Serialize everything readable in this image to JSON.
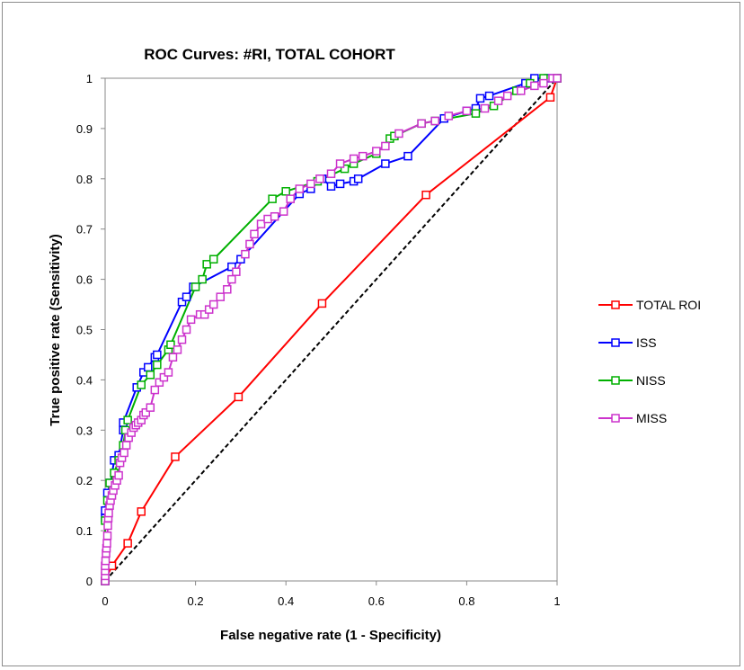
{
  "chart_data": {
    "type": "line",
    "title": "ROC Curves: #RI, TOTAL COHORT",
    "xlabel": "False negative rate (1 - Specificity)",
    "ylabel": "True positive rate (Sensitivity)",
    "xlim": [
      0,
      1
    ],
    "ylim": [
      0,
      1
    ],
    "x_ticks": [
      "0",
      "0.2",
      "0.4",
      "0.6",
      "0.8",
      "1"
    ],
    "y_ticks": [
      "0",
      "0.1",
      "0.2",
      "0.3",
      "0.4",
      "0.5",
      "0.6",
      "0.7",
      "0.8",
      "0.9",
      "1"
    ],
    "grid": false,
    "legend_position": "right",
    "reference_line": {
      "style": "dashed",
      "color": "#000000",
      "points": [
        [
          0,
          0
        ],
        [
          1,
          1
        ]
      ]
    },
    "series": [
      {
        "name": "TOTAL ROI",
        "color": "#ff0000",
        "marker": "square-open",
        "points": [
          [
            0,
            0
          ],
          [
            0.015,
            0.03
          ],
          [
            0.05,
            0.075
          ],
          [
            0.08,
            0.138
          ],
          [
            0.155,
            0.247
          ],
          [
            0.295,
            0.366
          ],
          [
            0.48,
            0.552
          ],
          [
            0.71,
            0.768
          ],
          [
            0.985,
            0.962
          ],
          [
            1.0,
            1.0
          ]
        ]
      },
      {
        "name": "ISS",
        "color": "#0000ff",
        "marker": "square-open",
        "points": [
          [
            0,
            0
          ],
          [
            0,
            0.125
          ],
          [
            0,
            0.14
          ],
          [
            0.005,
            0.175
          ],
          [
            0.012,
            0.195
          ],
          [
            0.02,
            0.24
          ],
          [
            0.03,
            0.25
          ],
          [
            0.04,
            0.3
          ],
          [
            0.04,
            0.315
          ],
          [
            0.07,
            0.385
          ],
          [
            0.085,
            0.415
          ],
          [
            0.095,
            0.425
          ],
          [
            0.11,
            0.445
          ],
          [
            0.115,
            0.45
          ],
          [
            0.17,
            0.555
          ],
          [
            0.18,
            0.565
          ],
          [
            0.195,
            0.585
          ],
          [
            0.28,
            0.625
          ],
          [
            0.3,
            0.64
          ],
          [
            0.43,
            0.77
          ],
          [
            0.455,
            0.78
          ],
          [
            0.48,
            0.8
          ],
          [
            0.5,
            0.785
          ],
          [
            0.52,
            0.79
          ],
          [
            0.55,
            0.795
          ],
          [
            0.56,
            0.8
          ],
          [
            0.62,
            0.83
          ],
          [
            0.67,
            0.845
          ],
          [
            0.75,
            0.92
          ],
          [
            0.8,
            0.935
          ],
          [
            0.82,
            0.94
          ],
          [
            0.83,
            0.96
          ],
          [
            0.85,
            0.965
          ],
          [
            0.93,
            0.99
          ],
          [
            0.95,
            1.0
          ],
          [
            0.98,
            1.0
          ],
          [
            1.0,
            1.0
          ]
        ]
      },
      {
        "name": "NISS",
        "color": "#00b000",
        "marker": "square-open",
        "points": [
          [
            0,
            0
          ],
          [
            0,
            0.12
          ],
          [
            0.005,
            0.16
          ],
          [
            0.01,
            0.195
          ],
          [
            0.02,
            0.215
          ],
          [
            0.03,
            0.24
          ],
          [
            0.04,
            0.27
          ],
          [
            0.045,
            0.3
          ],
          [
            0.05,
            0.32
          ],
          [
            0.08,
            0.39
          ],
          [
            0.1,
            0.41
          ],
          [
            0.115,
            0.43
          ],
          [
            0.14,
            0.46
          ],
          [
            0.145,
            0.47
          ],
          [
            0.2,
            0.585
          ],
          [
            0.215,
            0.6
          ],
          [
            0.225,
            0.63
          ],
          [
            0.24,
            0.64
          ],
          [
            0.37,
            0.76
          ],
          [
            0.4,
            0.775
          ],
          [
            0.47,
            0.795
          ],
          [
            0.53,
            0.82
          ],
          [
            0.55,
            0.83
          ],
          [
            0.6,
            0.85
          ],
          [
            0.63,
            0.88
          ],
          [
            0.64,
            0.885
          ],
          [
            0.7,
            0.91
          ],
          [
            0.73,
            0.915
          ],
          [
            0.82,
            0.93
          ],
          [
            0.86,
            0.945
          ],
          [
            0.91,
            0.975
          ],
          [
            0.94,
            0.99
          ],
          [
            0.97,
            1.0
          ],
          [
            1.0,
            1.0
          ]
        ]
      },
      {
        "name": "MISS",
        "color": "#cc33cc",
        "marker": "square-open",
        "points": [
          [
            0,
            0
          ],
          [
            0,
            0.01
          ],
          [
            0,
            0.02
          ],
          [
            0,
            0.03
          ],
          [
            0.001,
            0.04
          ],
          [
            0.002,
            0.055
          ],
          [
            0.003,
            0.065
          ],
          [
            0.004,
            0.075
          ],
          [
            0.005,
            0.09
          ],
          [
            0.006,
            0.11
          ],
          [
            0.007,
            0.125
          ],
          [
            0.008,
            0.135
          ],
          [
            0.01,
            0.15
          ],
          [
            0.012,
            0.16
          ],
          [
            0.015,
            0.17
          ],
          [
            0.018,
            0.18
          ],
          [
            0.022,
            0.19
          ],
          [
            0.026,
            0.2
          ],
          [
            0.03,
            0.21
          ],
          [
            0.033,
            0.235
          ],
          [
            0.037,
            0.245
          ],
          [
            0.042,
            0.255
          ],
          [
            0.047,
            0.27
          ],
          [
            0.052,
            0.285
          ],
          [
            0.058,
            0.295
          ],
          [
            0.063,
            0.305
          ],
          [
            0.068,
            0.31
          ],
          [
            0.073,
            0.315
          ],
          [
            0.08,
            0.32
          ],
          [
            0.085,
            0.33
          ],
          [
            0.09,
            0.335
          ],
          [
            0.1,
            0.345
          ],
          [
            0.11,
            0.38
          ],
          [
            0.12,
            0.395
          ],
          [
            0.13,
            0.405
          ],
          [
            0.14,
            0.415
          ],
          [
            0.15,
            0.445
          ],
          [
            0.16,
            0.46
          ],
          [
            0.17,
            0.48
          ],
          [
            0.18,
            0.5
          ],
          [
            0.19,
            0.52
          ],
          [
            0.21,
            0.53
          ],
          [
            0.22,
            0.53
          ],
          [
            0.23,
            0.54
          ],
          [
            0.24,
            0.55
          ],
          [
            0.255,
            0.565
          ],
          [
            0.27,
            0.58
          ],
          [
            0.28,
            0.6
          ],
          [
            0.29,
            0.615
          ],
          [
            0.31,
            0.65
          ],
          [
            0.32,
            0.67
          ],
          [
            0.33,
            0.69
          ],
          [
            0.345,
            0.71
          ],
          [
            0.36,
            0.72
          ],
          [
            0.375,
            0.725
          ],
          [
            0.395,
            0.735
          ],
          [
            0.41,
            0.76
          ],
          [
            0.43,
            0.78
          ],
          [
            0.455,
            0.79
          ],
          [
            0.475,
            0.8
          ],
          [
            0.5,
            0.81
          ],
          [
            0.52,
            0.83
          ],
          [
            0.55,
            0.84
          ],
          [
            0.57,
            0.845
          ],
          [
            0.6,
            0.855
          ],
          [
            0.62,
            0.865
          ],
          [
            0.65,
            0.89
          ],
          [
            0.7,
            0.91
          ],
          [
            0.73,
            0.915
          ],
          [
            0.76,
            0.925
          ],
          [
            0.8,
            0.935
          ],
          [
            0.84,
            0.94
          ],
          [
            0.87,
            0.955
          ],
          [
            0.89,
            0.965
          ],
          [
            0.92,
            0.975
          ],
          [
            0.95,
            0.985
          ],
          [
            0.97,
            0.99
          ],
          [
            0.99,
            1.0
          ],
          [
            1.0,
            1.0
          ]
        ]
      }
    ]
  }
}
